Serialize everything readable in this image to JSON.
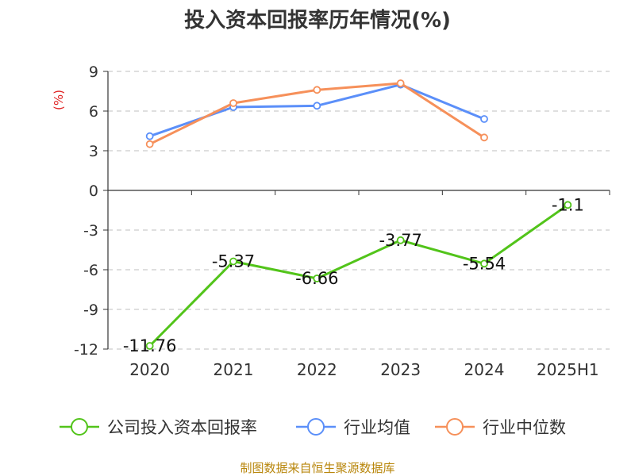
{
  "chart_data": {
    "type": "line",
    "title": "投入资本回报率历年情况(%)",
    "ylabel": "(%)",
    "categories": [
      "2020",
      "2021",
      "2022",
      "2023",
      "2024",
      "2025H1"
    ],
    "yticks": [
      9,
      6,
      3,
      0,
      -3,
      -6,
      -9,
      -12
    ],
    "ylim": [
      -12,
      9
    ],
    "grid": true,
    "legend_position": "bottom",
    "series": [
      {
        "name": "公司投入资本回报率",
        "color": "#52c41a",
        "values": [
          -11.76,
          -5.37,
          -6.66,
          -3.77,
          -5.54,
          -1.1
        ],
        "labels": [
          "-11.76",
          "-5.37",
          "-6.66",
          "-3.77",
          "-5.54",
          "-1.1"
        ]
      },
      {
        "name": "行业均值",
        "color": "#5b8ff9",
        "values": [
          4.1,
          6.3,
          6.4,
          8.0,
          5.4,
          null
        ]
      },
      {
        "name": "行业中位数",
        "color": "#f6905a",
        "values": [
          3.5,
          6.6,
          7.6,
          8.1,
          4.0,
          null
        ]
      }
    ]
  },
  "source": "制图数据来自恒生聚源数据库"
}
